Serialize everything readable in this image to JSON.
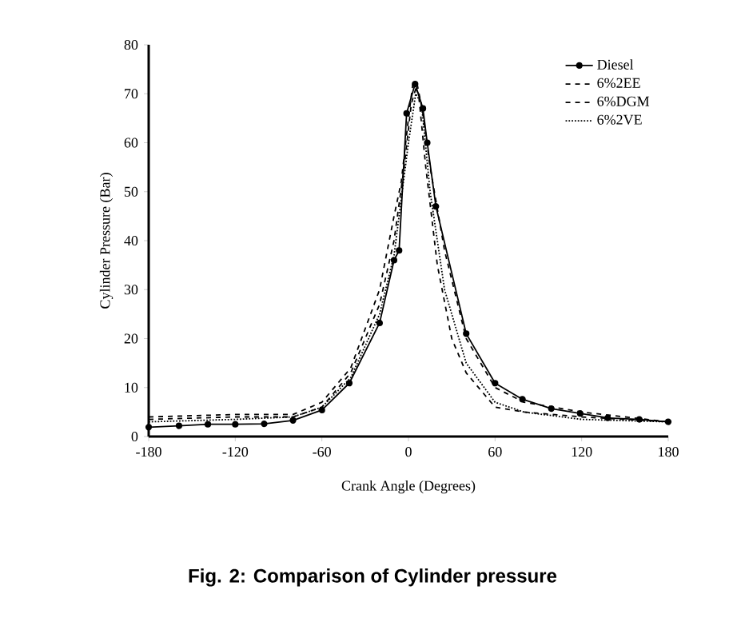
{
  "chart_data": {
    "type": "line",
    "xlabel": "Crank Angle (Degrees)",
    "ylabel": "Cylinder Pressure (Bar)",
    "annotations": [
      "Fig. 2: Comparison of Cylinder pressure"
    ],
    "xlim": [
      -180,
      180
    ],
    "ylim": [
      0,
      80
    ],
    "xticks": [
      -180,
      -120,
      -60,
      0,
      60,
      120,
      180
    ],
    "yticks": [
      0,
      10,
      20,
      30,
      40,
      50,
      60,
      70,
      80
    ],
    "legend": "top right",
    "grid": false,
    "series": [
      {
        "name": "Diesel",
        "color": "#000000",
        "marker": "circle",
        "line_style": "solid",
        "x": [
          -180,
          -159,
          -139,
          -120,
          -100,
          -80,
          -60,
          -41,
          -20,
          -10,
          -6.5,
          -1.3,
          4.6,
          10,
          13,
          19,
          40,
          60,
          79,
          99,
          119,
          138,
          160,
          180
        ],
        "values": [
          1.9,
          2.2,
          2.5,
          2.5,
          2.6,
          3.3,
          5.4,
          10.9,
          23.2,
          36,
          38,
          66,
          72,
          67,
          60,
          47,
          21,
          10.9,
          7.6,
          5.7,
          4.7,
          3.8,
          3.5,
          3.0
        ]
      },
      {
        "name": "6%2EE",
        "color": "#000000",
        "marker": "none",
        "line_style": "dashed",
        "x": [
          -180,
          -120,
          -80,
          -60,
          -40,
          -20,
          -10,
          -5,
          0,
          3,
          7,
          12,
          20,
          30,
          40,
          60,
          80,
          120,
          180
        ],
        "values": [
          4,
          4.5,
          4.5,
          7,
          14,
          30,
          45,
          52,
          65,
          72,
          70,
          55,
          35,
          20,
          13,
          6,
          5,
          4,
          3
        ]
      },
      {
        "name": "6%DGM",
        "color": "#000000",
        "marker": "none",
        "line_style": "dashed",
        "x": [
          -180,
          -120,
          -80,
          -60,
          -40,
          -20,
          -10,
          -3,
          2,
          6,
          10,
          15,
          25,
          40,
          60,
          80,
          120,
          180
        ],
        "values": [
          3.5,
          4,
          4,
          6,
          13,
          27,
          40,
          55,
          68,
          72,
          66,
          55,
          38,
          20,
          10,
          7,
          5,
          3
        ]
      },
      {
        "name": "6%2VE",
        "color": "#000000",
        "marker": "none",
        "line_style": "dotted",
        "x": [
          -180,
          -120,
          -80,
          -60,
          -40,
          -20,
          -10,
          0,
          5,
          9,
          15,
          25,
          40,
          60,
          80,
          120,
          180
        ],
        "values": [
          3,
          3.5,
          4,
          6,
          12,
          25,
          37,
          60,
          70,
          68,
          50,
          30,
          15,
          7,
          5,
          3.5,
          3
        ]
      }
    ]
  }
}
